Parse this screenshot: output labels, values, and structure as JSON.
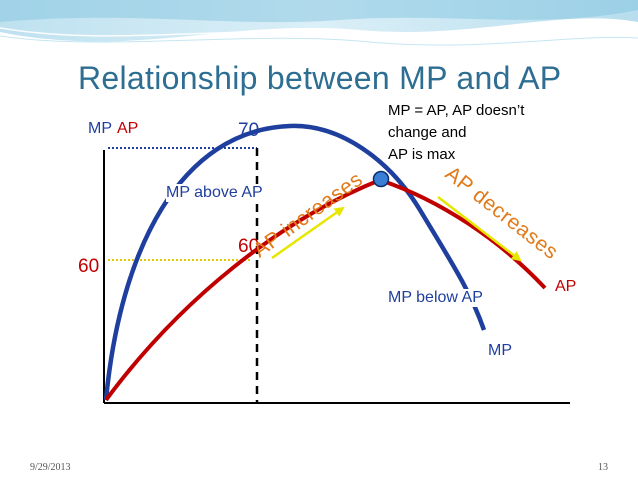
{
  "slide": {
    "title": "Relationship between MP and AP",
    "date": "9/29/2013",
    "page_number": "13"
  },
  "labels": {
    "axis_mp": "MP",
    "axis_ap": "AP",
    "value_70": "70",
    "value_60_axis": "60",
    "value_60_curve": "60",
    "mp_above_ap": "MP above AP",
    "mp_below_ap": "MP below AP",
    "equal_note_line1": "MP = AP, AP doesn’t",
    "equal_note_line2": "change and",
    "equal_note_line3": "AP is max",
    "ap_increases": "AP increases",
    "ap_decreases": "AP decreases",
    "curve_ap": "AP",
    "curve_mp": "MP"
  },
  "colors": {
    "title": "#2d6e92",
    "mp_curve": "#1f3f9e",
    "ap_curve": "#c00000",
    "arrow": "#e6e600",
    "dotted_guides": "#1f3f9e",
    "dotted_60": "#e6c800",
    "intersection_point": "#3a7fd5",
    "annotation_orange": "#e07a1a"
  }
}
